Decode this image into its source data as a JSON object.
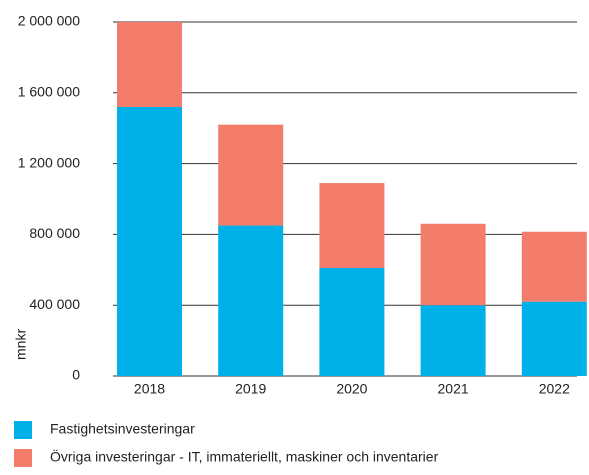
{
  "chart_data": {
    "type": "stacked_bar",
    "y_label": "mnkr",
    "categories": [
      "2018",
      "2019",
      "2020",
      "2021",
      "2022"
    ],
    "series": [
      {
        "name": "Fastighetsinvesteringar",
        "color": "#00b0e8",
        "values": [
          1520000,
          850000,
          610000,
          400000,
          420000
        ]
      },
      {
        "name": "Övriga investeringar - IT, immateriellt, maskiner och inventarier",
        "color": "#f47c6a",
        "values": [
          480000,
          570000,
          480000,
          460000,
          395000
        ]
      }
    ],
    "ylim": [
      0,
      2000000
    ],
    "yticks": [
      0,
      {
        "value": 400000,
        "label": "400 000"
      },
      {
        "value": 800000,
        "label": "800 000"
      },
      {
        "value": 1200000,
        "label": "1 200 000"
      },
      {
        "value": 1600000,
        "label": "1 600 000"
      },
      {
        "value": 2000000,
        "label": "2 000 000"
      }
    ],
    "grid": true
  }
}
